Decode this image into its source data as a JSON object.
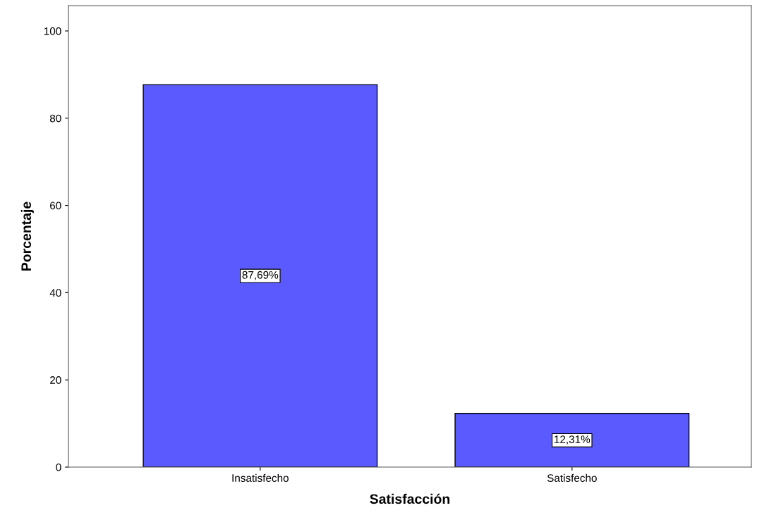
{
  "chart_data": {
    "type": "bar",
    "xlabel": "Satisfacción",
    "ylabel": "Porcentaje",
    "categories": [
      "Insatisfecho",
      "Satisfecho"
    ],
    "values": [
      87.69,
      12.31
    ],
    "color": "#5a5aff",
    "value_labels": [
      "87,69%",
      "12,31%"
    ],
    "ylim": [
      0,
      105.8
    ],
    "yticks": [
      0,
      20,
      40,
      60,
      80,
      100
    ],
    "grid": false
  }
}
